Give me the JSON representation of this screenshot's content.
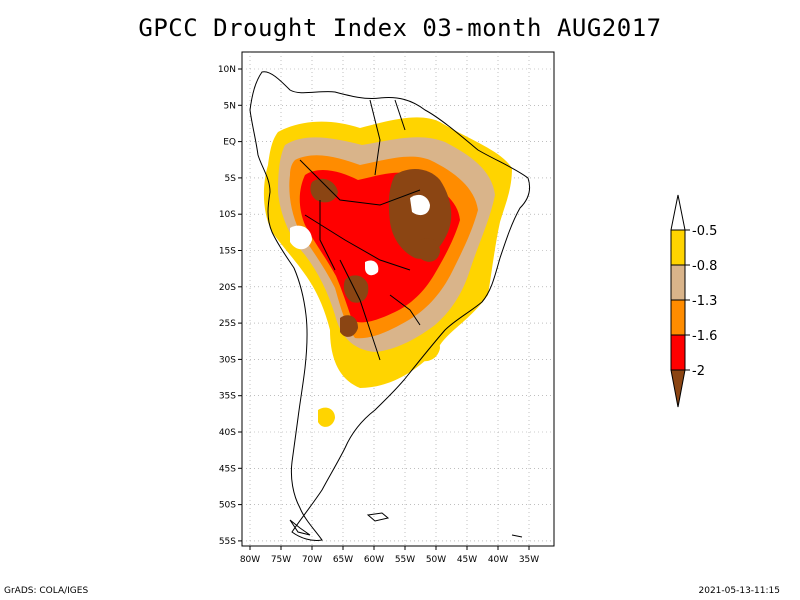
{
  "title": "GPCC Drought Index 03-month AUG2017",
  "footer": {
    "left": "GrADS: COLA/IGES",
    "right": "2021-05-13-11:15"
  },
  "axes": {
    "lat_labels": [
      "10N",
      "5N",
      "EQ",
      "5S",
      "10S",
      "15S",
      "20S",
      "25S",
      "30S",
      "35S",
      "40S",
      "45S",
      "50S",
      "55S"
    ],
    "lon_labels": [
      "80W",
      "75W",
      "70W",
      "65W",
      "60W",
      "55W",
      "50W",
      "45W",
      "40W",
      "35W"
    ]
  },
  "legend": {
    "labels": [
      "-0.5",
      "-0.8",
      "-1.3",
      "-1.6",
      "-2"
    ],
    "colors": {
      "above": "#ffffff",
      "c1": "#ffd400",
      "c2": "#d9b48a",
      "c3": "#ff8c00",
      "c4": "#ff0000",
      "c5": "#8b4513"
    }
  },
  "palette": {
    "yellow": "#ffd400",
    "tan": "#d9b48a",
    "orange": "#ff8c00",
    "red": "#ff0000",
    "brown": "#8b4513"
  }
}
